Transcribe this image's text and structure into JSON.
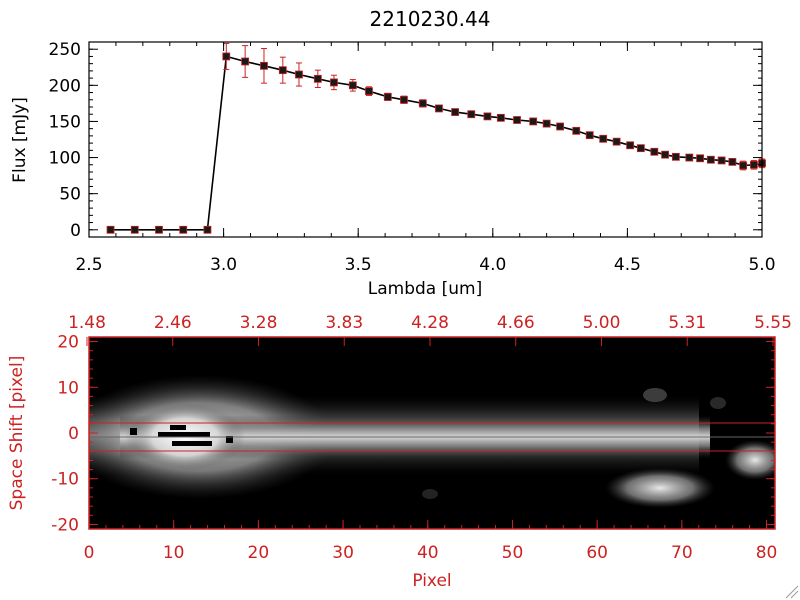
{
  "colors": {
    "axis_black": "#000000",
    "accent_red": "#cc2222",
    "line": "#000000",
    "marker_fill": "#1a1a1a",
    "marker_edge": "#cc2222",
    "errorbar": "#cc2222",
    "image_background": "#000000"
  },
  "chart_data": [
    {
      "type": "line",
      "title": "2210230.44",
      "xlabel": "Lambda [um]",
      "ylabel": "Flux [mJy]",
      "xlim": [
        2.5,
        5.0
      ],
      "ylim": [
        -10,
        260
      ],
      "x_ticks": [
        "2.5",
        "3.0",
        "3.5",
        "4.0",
        "4.5",
        "5.0"
      ],
      "y_ticks": [
        "0",
        "50",
        "100",
        "150",
        "200",
        "250"
      ],
      "grid": false,
      "legend": "none",
      "series": [
        {
          "x": [
            2.58,
            2.67,
            2.76,
            2.85,
            2.94,
            3.01,
            3.08,
            3.15,
            3.22,
            3.28,
            3.35,
            3.41,
            3.48,
            3.54,
            3.61,
            3.67,
            3.74,
            3.8,
            3.86,
            3.92,
            3.98,
            4.03,
            4.09,
            4.15,
            4.2,
            4.25,
            4.31,
            4.36,
            4.41,
            4.46,
            4.51,
            4.55,
            4.6,
            4.64,
            4.68,
            4.73,
            4.77,
            4.81,
            4.85,
            4.89,
            4.93,
            4.97,
            5.0
          ],
          "y": [
            0,
            0,
            0,
            0,
            0,
            240,
            233,
            227,
            221,
            215,
            209,
            204,
            200,
            192,
            184,
            180,
            175,
            168,
            163,
            160,
            157,
            155,
            152,
            150,
            147,
            143,
            137,
            131,
            126,
            122,
            117,
            113,
            108,
            104,
            101,
            100,
            99,
            97,
            96,
            94,
            89,
            90,
            92
          ],
          "yerr": [
            0,
            0,
            0,
            0,
            0,
            18,
            22,
            24,
            18,
            16,
            12,
            10,
            8,
            6,
            5,
            5,
            5,
            4,
            4,
            4,
            4,
            4,
            4,
            4,
            4,
            4,
            4,
            4,
            4,
            4,
            4,
            4,
            4,
            4,
            4,
            4,
            4,
            4,
            4,
            4,
            6,
            6,
            6
          ]
        }
      ]
    },
    {
      "type": "heatmap",
      "xlabel": "Pixel",
      "ylabel": "Space Shift [pixel]",
      "xlim": [
        0,
        81
      ],
      "ylim": [
        -21,
        21
      ],
      "x_ticks": [
        "0",
        "10",
        "20",
        "30",
        "40",
        "50",
        "60",
        "70",
        "80"
      ],
      "y_ticks": [
        "-20",
        "-10",
        "0",
        "10",
        "20"
      ],
      "top_ticks": [
        "1.48",
        "2.46",
        "3.28",
        "3.83",
        "4.28",
        "4.66",
        "5.00",
        "5.31",
        "5.55"
      ],
      "extraction_window": [
        -3,
        3
      ],
      "trace_center": 0
    }
  ]
}
